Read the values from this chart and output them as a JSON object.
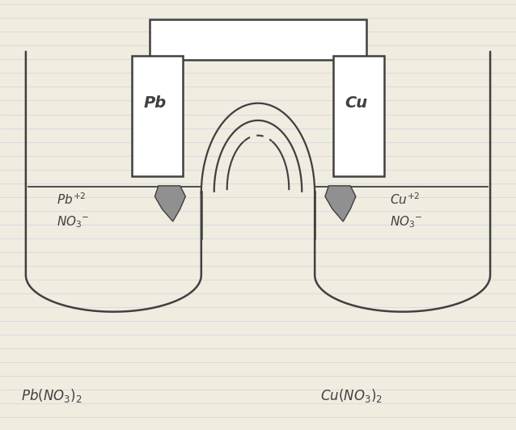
{
  "background_color": "#f0ece0",
  "line_color": "#404040",
  "paper_color": "#f5f2e8",
  "line_width": 1.8,
  "pb_label": "Pb",
  "cu_label": "Cu"
}
